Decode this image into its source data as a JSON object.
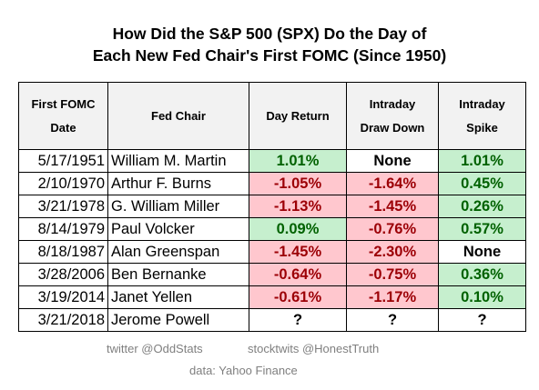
{
  "title_line1": "How Did the S&P 500 (SPX) Do the Day of",
  "title_line2": "Each New Fed Chair's First FOMC (Since 1950)",
  "colors": {
    "positive_bg": "#c6efce",
    "positive_text": "#006100",
    "negative_bg": "#ffc7ce",
    "negative_text": "#9c0006",
    "header_bg": "#f2f2f2"
  },
  "chart_data": {
    "type": "table",
    "columns": [
      "First FOMC Date",
      "Fed Chair",
      "Day Return",
      "Intraday Draw Down",
      "Intraday Spike"
    ],
    "rows": [
      [
        "5/17/1951",
        "William M. Martin",
        "1.01%",
        "None",
        "1.01%"
      ],
      [
        "2/10/1970",
        "Arthur F. Burns",
        "-1.05%",
        "-1.64%",
        "0.45%"
      ],
      [
        "3/21/1978",
        "G. William Miller",
        "-1.13%",
        "-1.45%",
        "0.26%"
      ],
      [
        "8/14/1979",
        "Paul Volcker",
        "0.09%",
        "-0.76%",
        "0.57%"
      ],
      [
        "8/18/1987",
        "Alan Greenspan",
        "-1.45%",
        "-2.30%",
        "None"
      ],
      [
        "3/28/2006",
        "Ben Bernanke",
        "-0.64%",
        "-0.75%",
        "0.36%"
      ],
      [
        "3/19/2014",
        "Janet Yellen",
        "-0.61%",
        "-1.17%",
        "0.10%"
      ],
      [
        "3/21/2018",
        "Jerome Powell",
        "?",
        "?",
        "?"
      ]
    ]
  },
  "footer": {
    "twitter": "twitter @OddStats",
    "stocktwits": "stocktwits @HonestTruth",
    "source": "data: Yahoo Finance"
  }
}
